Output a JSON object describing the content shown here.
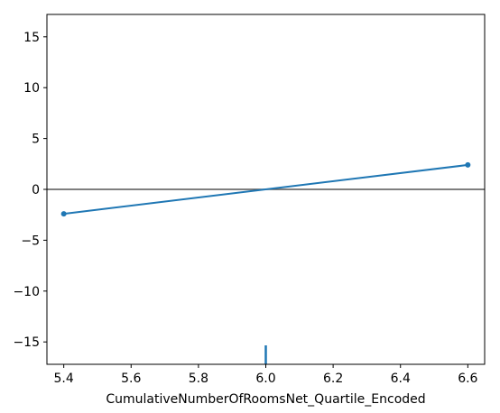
{
  "chart_data": {
    "type": "line",
    "title": "",
    "xlabel": "CumulativeNumberOfRoomsNet_Quartile_Encoded",
    "ylabel": "",
    "xlim": [
      5.35,
      6.65
    ],
    "ylim": [
      -17.2,
      17.2
    ],
    "x_ticks": [
      5.4,
      5.6,
      5.8,
      6.0,
      6.2,
      6.4,
      6.6
    ],
    "x_tick_labels": [
      "5.4",
      "5.6",
      "5.8",
      "6.0",
      "6.2",
      "6.4",
      "6.6"
    ],
    "y_ticks": [
      15,
      10,
      5,
      0,
      -5,
      -10,
      -15
    ],
    "y_tick_labels": [
      "15",
      "10",
      "5",
      "0",
      "−5",
      "−10",
      "−15"
    ],
    "grid": false,
    "series": [
      {
        "x": [
          5.4,
          6.6
        ],
        "y": [
          -2.4,
          2.4
        ],
        "markers": true
      }
    ],
    "reference_line_y": 0,
    "rug_x": [
      6.0
    ],
    "colors": {
      "series": "#1f77b4",
      "reference": "#555555",
      "rug": "#1f77b4",
      "axes": "#000000"
    }
  }
}
